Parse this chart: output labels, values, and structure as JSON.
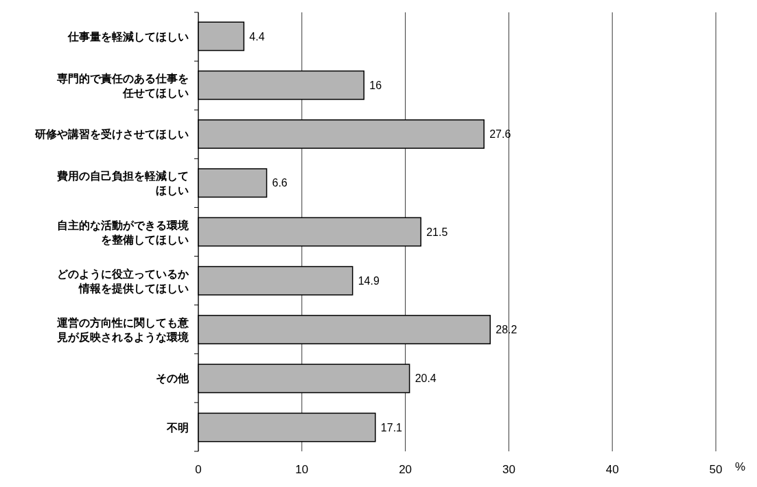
{
  "chart_data": {
    "type": "bar",
    "orientation": "horizontal",
    "categories": [
      "仕事量を軽減してほしい",
      "専門的で責任のある仕事を任せてほしい",
      "研修や講習を受けさせてほしい",
      "費用の自己負担を軽減してほしい",
      "自主的な活動ができる環境を整備してほしい",
      "どのように役立っているか情報を提供してほしい",
      "運営の方向性に関しても意見が反映されるような環境",
      "その他",
      "不明"
    ],
    "values": [
      4.4,
      16,
      27.6,
      6.6,
      21.5,
      14.9,
      28.2,
      20.4,
      17.1
    ],
    "color": "#b4b4b4",
    "data_labels": true,
    "xlabel": "%",
    "xlim": [
      0,
      50
    ],
    "xticks": [
      0,
      10,
      20,
      30,
      40,
      50
    ],
    "grid": "x"
  }
}
